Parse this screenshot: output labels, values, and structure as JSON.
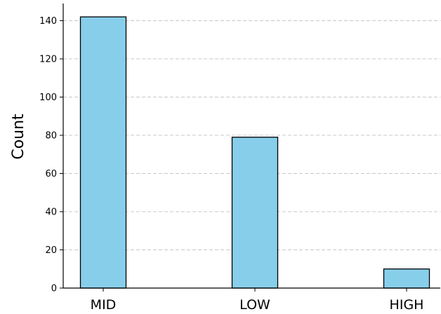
{
  "chart_data": {
    "type": "bar",
    "title": "",
    "xlabel": "",
    "ylabel": "Count",
    "categories": [
      "MID",
      "LOW",
      "HIGH"
    ],
    "values": [
      142,
      79,
      10
    ],
    "ylim": [
      0,
      149
    ],
    "yticks": [
      0,
      20,
      40,
      60,
      80,
      100,
      120,
      140
    ],
    "grid": "y-dashed",
    "bar_color": "#87ceeb",
    "edge_color": "#000000",
    "grid_color": "#c8c8c8"
  }
}
